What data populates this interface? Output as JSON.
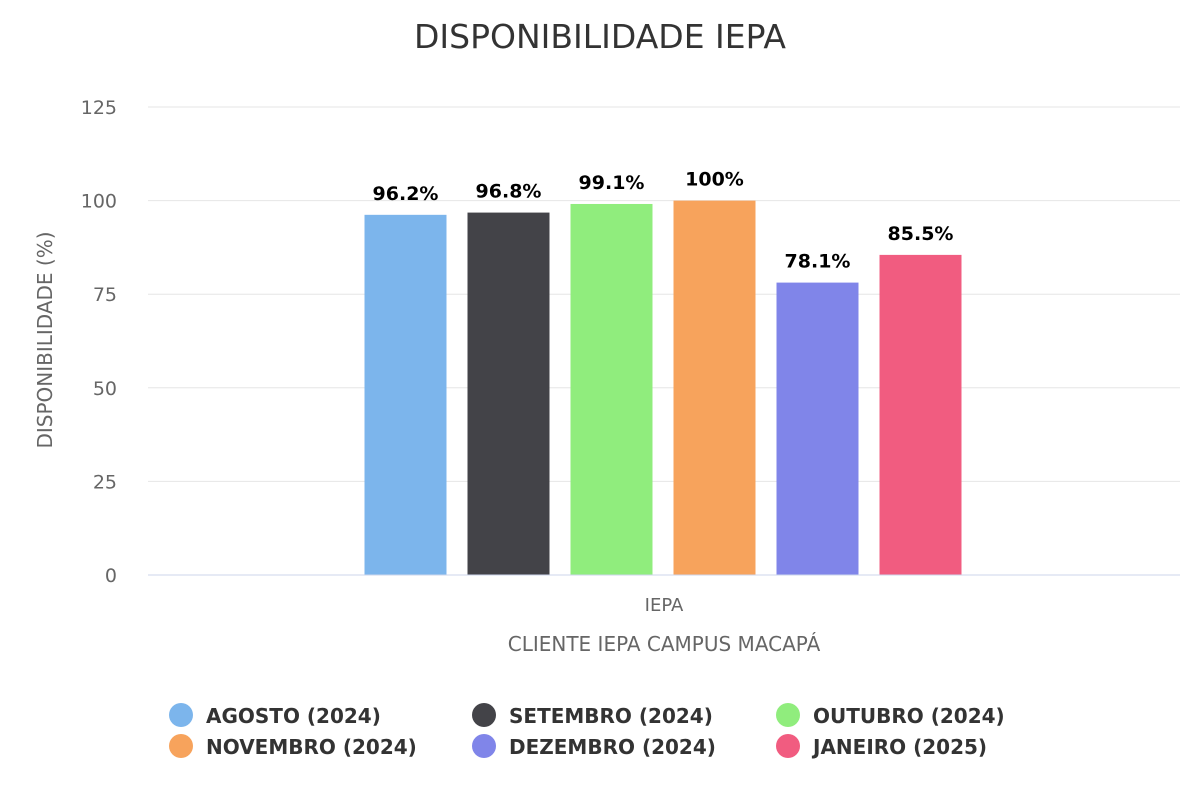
{
  "chart_data": {
    "type": "bar",
    "title": "DISPONIBILIDADE IEPA",
    "xlabel": "CLIENTE IEPA CAMPUS MACAPÁ",
    "ylabel": "DISPONIBILIDADE (%)",
    "categories": [
      "IEPA"
    ],
    "ylim": [
      0,
      125
    ],
    "yticks": [
      0,
      25,
      50,
      75,
      100,
      125
    ],
    "grid": true,
    "legend_position": "bottom",
    "series": [
      {
        "name": "AGOSTO (2024)",
        "values": [
          96.2
        ],
        "label": "96.2%",
        "color": "#7cb5ec"
      },
      {
        "name": "SETEMBRO (2024)",
        "values": [
          96.8
        ],
        "label": "96.8%",
        "color": "#434348"
      },
      {
        "name": "OUTUBRO (2024)",
        "values": [
          99.1
        ],
        "label": "99.1%",
        "color": "#90ed7d"
      },
      {
        "name": "NOVEMBRO (2024)",
        "values": [
          100
        ],
        "label": "100%",
        "color": "#f7a35c"
      },
      {
        "name": "DEZEMBRO (2024)",
        "values": [
          78.1
        ],
        "label": "78.1%",
        "color": "#8085e9"
      },
      {
        "name": "JANEIRO (2025)",
        "values": [
          85.5
        ],
        "label": "85.5%",
        "color": "#f15c80"
      }
    ]
  }
}
